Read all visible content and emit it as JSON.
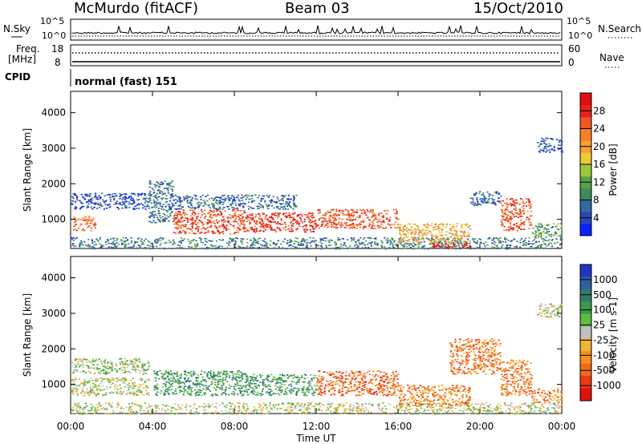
{
  "header": {
    "station": "McMurdo (fitACF)",
    "beam": "Beam 03",
    "date": "15/Oct/2010"
  },
  "summary_panels": {
    "nsky_label": "N.Sky",
    "nsearch_label": "N.Search",
    "noise_ticks_left": [
      "10^5",
      "10^0"
    ],
    "noise_ticks_right": [
      "10^5",
      "10^0"
    ],
    "freq_label_1": "Freq.",
    "freq_label_2": "[MHz]",
    "freq_ticks": [
      "18",
      "8"
    ],
    "nave_label": "Nave",
    "nave_ticks": [
      "60",
      "0"
    ],
    "cpid_label": "CPID",
    "cpid_value": "normal (fast) 151"
  },
  "chart_data": [
    {
      "type": "heatmap",
      "name": "power",
      "ylabel": "Slant Range [km]",
      "xlabel": "Time UT",
      "yticks": [
        1000,
        2000,
        3000,
        4000
      ],
      "ylim": [
        180,
        4600
      ],
      "xticks": [
        "00:00",
        "04:00",
        "08:00",
        "12:00",
        "16:00",
        "20:00",
        "00:00"
      ],
      "xlim_hours": [
        0,
        24
      ],
      "colorbar": {
        "label": "Power [dB]",
        "ticks": [
          "4",
          "8",
          "12",
          "16",
          "20",
          "24",
          "28"
        ],
        "colors": [
          "#0a22ff",
          "#2b45b8",
          "#2f6b9e",
          "#3f8a5a",
          "#58a14a",
          "#9bc93c",
          "#f1c933",
          "#f7a035",
          "#f57f2a",
          "#ef5624",
          "#e62319",
          "#e00f10"
        ]
      },
      "scatter_bands": [
        {
          "t0": 0.0,
          "t1": 24.0,
          "r0": 180,
          "r1": 500,
          "level": 0.25
        },
        {
          "t0": 0.0,
          "t1": 1.2,
          "r0": 700,
          "r1": 1100,
          "level": 0.72
        },
        {
          "t0": 0.0,
          "t1": 3.8,
          "r0": 1300,
          "r1": 1750,
          "level": 0.12
        },
        {
          "t0": 3.8,
          "t1": 5.0,
          "r0": 900,
          "r1": 2100,
          "level": 0.22
        },
        {
          "t0": 5.0,
          "t1": 8.5,
          "r0": 600,
          "r1": 1300,
          "level": 0.82
        },
        {
          "t0": 8.5,
          "t1": 12.0,
          "r0": 650,
          "r1": 1200,
          "level": 0.88
        },
        {
          "t0": 12.0,
          "t1": 16.0,
          "r0": 750,
          "r1": 1300,
          "level": 0.78
        },
        {
          "t0": 5.0,
          "t1": 11.0,
          "r0": 1300,
          "r1": 1700,
          "level": 0.2
        },
        {
          "t0": 16.0,
          "t1": 19.5,
          "r0": 350,
          "r1": 900,
          "level": 0.6
        },
        {
          "t0": 17.5,
          "t1": 19.5,
          "r0": 200,
          "r1": 350,
          "level": 0.95
        },
        {
          "t0": 19.5,
          "t1": 21.0,
          "r0": 1400,
          "r1": 1800,
          "level": 0.18
        },
        {
          "t0": 21.0,
          "t1": 22.5,
          "r0": 700,
          "r1": 1600,
          "level": 0.8
        },
        {
          "t0": 22.5,
          "t1": 24.0,
          "r0": 500,
          "r1": 900,
          "level": 0.35
        },
        {
          "t0": 22.8,
          "t1": 24.0,
          "r0": 2900,
          "r1": 3300,
          "level": 0.15
        }
      ]
    },
    {
      "type": "heatmap",
      "name": "velocity",
      "ylabel": "Slant Range [km]",
      "xlabel": "Time UT",
      "yticks": [
        1000,
        2000,
        3000,
        4000
      ],
      "ylim": [
        180,
        4600
      ],
      "xticks": [
        "00:00",
        "04:00",
        "08:00",
        "12:00",
        "16:00",
        "20:00",
        "00:00"
      ],
      "xlim_hours": [
        0,
        24
      ],
      "colorbar": {
        "label": "Velocity [m s-1]",
        "ticks": [
          "1000",
          "500",
          "100",
          "25",
          "-25",
          "-100",
          "-500",
          "-1000"
        ],
        "colors": [
          "#2233c8",
          "#2f5f9f",
          "#2f7c6a",
          "#3c9b4b",
          "#5fbc41",
          "#bfbfbf",
          "#f2b233",
          "#f5901f",
          "#ef6a1a",
          "#e63c16",
          "#e00f10"
        ]
      },
      "scatter_bands": [
        {
          "t0": 0.0,
          "t1": 24.0,
          "r0": 180,
          "r1": 500,
          "level": 0.5
        },
        {
          "t0": 0.0,
          "t1": 3.8,
          "r0": 700,
          "r1": 1200,
          "level": 0.5
        },
        {
          "t0": 0.0,
          "t1": 3.8,
          "r0": 1300,
          "r1": 1750,
          "level": 0.45
        },
        {
          "t0": 4.0,
          "t1": 8.5,
          "r0": 700,
          "r1": 1400,
          "level": 0.3
        },
        {
          "t0": 8.5,
          "t1": 12.0,
          "r0": 700,
          "r1": 1300,
          "level": 0.32
        },
        {
          "t0": 12.0,
          "t1": 16.0,
          "r0": 700,
          "r1": 1400,
          "level": 0.78
        },
        {
          "t0": 16.0,
          "t1": 19.5,
          "r0": 400,
          "r1": 1000,
          "level": 0.72
        },
        {
          "t0": 18.5,
          "t1": 21.0,
          "r0": 1300,
          "r1": 2300,
          "level": 0.75
        },
        {
          "t0": 21.0,
          "t1": 22.5,
          "r0": 700,
          "r1": 1700,
          "level": 0.74
        },
        {
          "t0": 22.5,
          "t1": 24.0,
          "r0": 500,
          "r1": 900,
          "level": 0.72
        },
        {
          "t0": 22.8,
          "t1": 24.0,
          "r0": 2900,
          "r1": 3300,
          "level": 0.5
        }
      ]
    }
  ]
}
